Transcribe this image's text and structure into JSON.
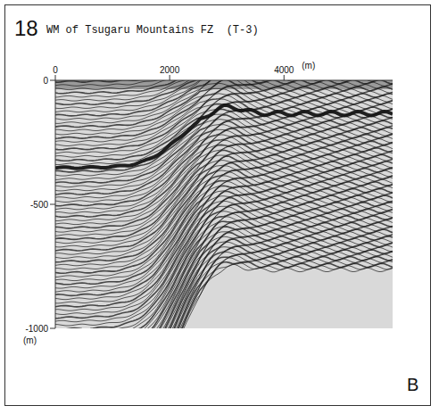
{
  "figure_number": "18",
  "panel_label": "B",
  "chart_data": {
    "type": "seismic_profile",
    "title": "WM of Tsugaru Mountains FZ  (T-3)",
    "x_label": "(m)",
    "y_label": "(m)",
    "xlim": [
      0,
      5900
    ],
    "xticks": [
      0,
      2000,
      4000
    ],
    "ylim": [
      -1000,
      0
    ],
    "yticks": [
      -1000,
      -500,
      0
    ]
  }
}
